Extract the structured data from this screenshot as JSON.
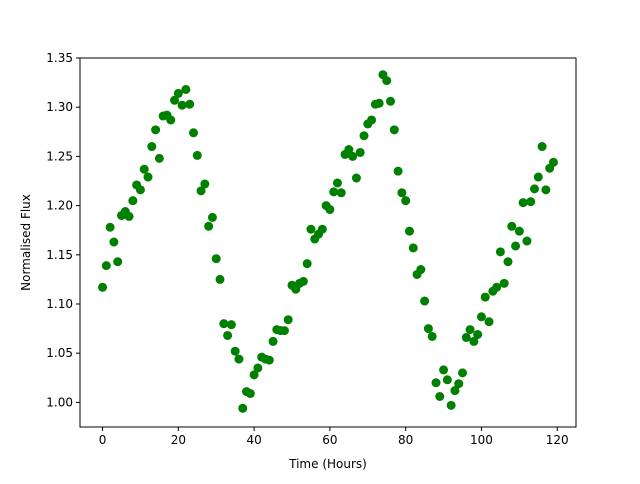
{
  "chart_data": {
    "type": "scatter",
    "title": "",
    "xlabel": "Time (Hours)",
    "ylabel": "Normalised Flux",
    "xlim": [
      -5.95,
      124.95
    ],
    "ylim": [
      0.975,
      1.35
    ],
    "xticks": [
      0,
      20,
      40,
      60,
      80,
      100,
      120
    ],
    "yticks": [
      1.0,
      1.05,
      1.1,
      1.15,
      1.2,
      1.25,
      1.3,
      1.35
    ],
    "xtick_labels": [
      "0",
      "20",
      "40",
      "60",
      "80",
      "100",
      "120"
    ],
    "ytick_labels": [
      "1.00",
      "1.05",
      "1.10",
      "1.15",
      "1.20",
      "1.25",
      "1.30",
      "1.35"
    ],
    "grid": false,
    "marker_color": "#008000",
    "series": [
      {
        "x": [
          0,
          1,
          2,
          3,
          4,
          5,
          6,
          7,
          8,
          9,
          10,
          11,
          12,
          13,
          14,
          15,
          16,
          17,
          18,
          19,
          20,
          21,
          22,
          23,
          24,
          25,
          26,
          27,
          28,
          29,
          30,
          31,
          32,
          33,
          34,
          35,
          36,
          37,
          38,
          39,
          40,
          41,
          42,
          43,
          44,
          45,
          46,
          47,
          48,
          49,
          50,
          51,
          52,
          53,
          54,
          55,
          56,
          57,
          58,
          59,
          60,
          61,
          62,
          63,
          64,
          65,
          66,
          67,
          68,
          69,
          70,
          71,
          72,
          73,
          74,
          75,
          76,
          77,
          78,
          79,
          80,
          81,
          82,
          83,
          84,
          85,
          86,
          87,
          88,
          89,
          90,
          91,
          92,
          93,
          94,
          95,
          96,
          97,
          98,
          99,
          100,
          101,
          102,
          103,
          104,
          105,
          106,
          107,
          108,
          109,
          110,
          111,
          112,
          113,
          114,
          115,
          116,
          117,
          118,
          119
        ],
        "y": [
          1.117,
          1.139,
          1.178,
          1.163,
          1.143,
          1.19,
          1.194,
          1.189,
          1.205,
          1.221,
          1.216,
          1.237,
          1.229,
          1.26,
          1.277,
          1.248,
          1.291,
          1.292,
          1.287,
          1.307,
          1.314,
          1.302,
          1.318,
          1.303,
          1.274,
          1.251,
          1.215,
          1.222,
          1.179,
          1.188,
          1.146,
          1.125,
          1.08,
          1.068,
          1.079,
          1.052,
          1.044,
          0.994,
          1.011,
          1.009,
          1.028,
          1.035,
          1.046,
          1.044,
          1.043,
          1.062,
          1.074,
          1.073,
          1.073,
          1.084,
          1.119,
          1.115,
          1.121,
          1.123,
          1.141,
          1.176,
          1.166,
          1.171,
          1.176,
          1.2,
          1.196,
          1.214,
          1.223,
          1.213,
          1.252,
          1.257,
          1.25,
          1.228,
          1.254,
          1.271,
          1.283,
          1.287,
          1.303,
          1.304,
          1.333,
          1.327,
          1.306,
          1.277,
          1.235,
          1.213,
          1.205,
          1.174,
          1.157,
          1.13,
          1.135,
          1.103,
          1.075,
          1.067,
          1.02,
          1.006,
          1.033,
          1.023,
          0.997,
          1.012,
          1.019,
          1.03,
          1.066,
          1.074,
          1.062,
          1.069,
          1.087,
          1.107,
          1.082,
          1.113,
          1.117,
          1.153,
          1.121,
          1.143,
          1.179,
          1.159,
          1.174,
          1.203,
          1.164,
          1.204,
          1.217,
          1.229,
          1.26,
          1.216,
          1.238,
          1.244
        ]
      }
    ]
  }
}
